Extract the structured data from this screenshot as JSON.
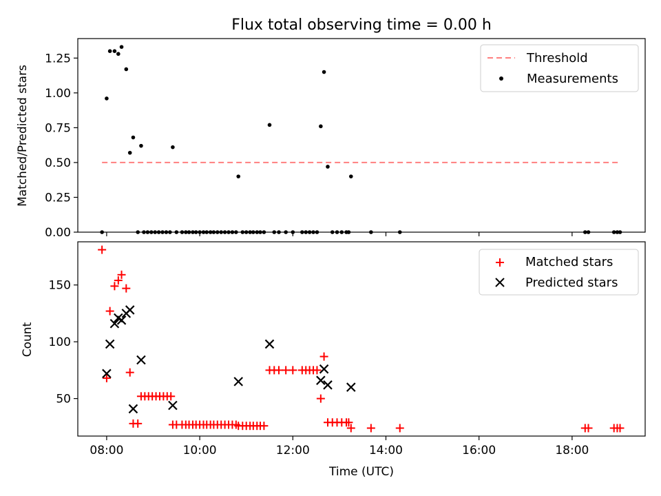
{
  "chart_data": [
    {
      "type": "scatter",
      "title": "Flux total observing time = 0.00 h",
      "xlabel": "",
      "ylabel": "Matched/Predicted stars",
      "xlim": [
        7.38,
        19.57
      ],
      "ylim": [
        0,
        1.39
      ],
      "yticks": [
        0.0,
        0.25,
        0.5,
        0.75,
        1.0,
        1.25
      ],
      "ytick_labels": [
        "0.00",
        "0.25",
        "0.50",
        "0.75",
        "1.00",
        "1.25"
      ],
      "legend_position": "upper right",
      "threshold": {
        "name": "Threshold",
        "y": 0.5,
        "x_range": [
          7.9,
          19.05
        ],
        "color": "#ff7f7f"
      },
      "series": [
        {
          "name": "Measurements",
          "color": "#000000",
          "points": [
            [
              7.9,
              0.0
            ],
            [
              8.0,
              0.96
            ],
            [
              8.07,
              1.3
            ],
            [
              8.17,
              1.3
            ],
            [
              8.25,
              1.28
            ],
            [
              8.32,
              1.33
            ],
            [
              8.42,
              1.17
            ],
            [
              8.5,
              0.57
            ],
            [
              8.57,
              0.68
            ],
            [
              8.74,
              0.62
            ],
            [
              9.42,
              0.61
            ],
            [
              8.67,
              0.0
            ],
            [
              8.8,
              0.0
            ],
            [
              8.88,
              0.0
            ],
            [
              8.96,
              0.0
            ],
            [
              9.04,
              0.0
            ],
            [
              9.12,
              0.0
            ],
            [
              9.2,
              0.0
            ],
            [
              9.28,
              0.0
            ],
            [
              9.36,
              0.0
            ],
            [
              9.5,
              0.0
            ],
            [
              9.62,
              0.0
            ],
            [
              9.7,
              0.0
            ],
            [
              9.77,
              0.0
            ],
            [
              9.85,
              0.0
            ],
            [
              9.92,
              0.0
            ],
            [
              10.0,
              0.0
            ],
            [
              10.08,
              0.0
            ],
            [
              10.15,
              0.0
            ],
            [
              10.23,
              0.0
            ],
            [
              10.3,
              0.0
            ],
            [
              10.38,
              0.0
            ],
            [
              10.46,
              0.0
            ],
            [
              10.54,
              0.0
            ],
            [
              10.62,
              0.0
            ],
            [
              10.7,
              0.0
            ],
            [
              10.78,
              0.0
            ],
            [
              10.83,
              0.4
            ],
            [
              10.92,
              0.0
            ],
            [
              11.0,
              0.0
            ],
            [
              11.08,
              0.0
            ],
            [
              11.15,
              0.0
            ],
            [
              11.23,
              0.0
            ],
            [
              11.3,
              0.0
            ],
            [
              11.38,
              0.0
            ],
            [
              11.5,
              0.77
            ],
            [
              11.6,
              0.0
            ],
            [
              11.7,
              0.0
            ],
            [
              11.85,
              0.0
            ],
            [
              12.0,
              0.0
            ],
            [
              12.2,
              0.0
            ],
            [
              12.28,
              0.0
            ],
            [
              12.36,
              0.0
            ],
            [
              12.44,
              0.0
            ],
            [
              12.52,
              0.0
            ],
            [
              12.6,
              0.76
            ],
            [
              12.67,
              1.15
            ],
            [
              12.75,
              0.47
            ],
            [
              12.85,
              0.0
            ],
            [
              12.95,
              0.0
            ],
            [
              13.05,
              0.0
            ],
            [
              13.15,
              0.0
            ],
            [
              13.2,
              0.0
            ],
            [
              13.25,
              0.4
            ],
            [
              13.68,
              0.0
            ],
            [
              14.3,
              0.0
            ],
            [
              18.28,
              0.0
            ],
            [
              18.35,
              0.0
            ],
            [
              18.9,
              0.0
            ],
            [
              18.97,
              0.0
            ],
            [
              19.03,
              0.0
            ]
          ]
        }
      ]
    },
    {
      "type": "scatter",
      "title": "",
      "xlabel": "Time (UTC)",
      "ylabel": "Count",
      "xlim": [
        7.38,
        19.57
      ],
      "ylim": [
        17,
        188
      ],
      "yticks": [
        50,
        100,
        150
      ],
      "ytick_labels": [
        "50",
        "100",
        "150"
      ],
      "xticks": [
        8,
        10,
        12,
        14,
        16,
        18
      ],
      "xtick_labels": [
        "08:00",
        "10:00",
        "12:00",
        "14:00",
        "16:00",
        "18:00"
      ],
      "legend_position": "upper right",
      "series": [
        {
          "name": "Matched stars",
          "marker": "+",
          "color": "#ff0000",
          "points": [
            [
              7.9,
              181
            ],
            [
              8.0,
              68
            ],
            [
              8.07,
              127
            ],
            [
              8.17,
              149
            ],
            [
              8.25,
              154
            ],
            [
              8.32,
              159
            ],
            [
              8.42,
              147
            ],
            [
              8.5,
              73
            ],
            [
              8.57,
              28
            ],
            [
              8.67,
              28
            ],
            [
              8.74,
              52
            ],
            [
              8.82,
              52
            ],
            [
              8.9,
              52
            ],
            [
              8.98,
              52
            ],
            [
              9.06,
              52
            ],
            [
              9.14,
              52
            ],
            [
              9.22,
              52
            ],
            [
              9.3,
              52
            ],
            [
              9.38,
              52
            ],
            [
              9.42,
              27
            ],
            [
              9.5,
              27
            ],
            [
              9.62,
              27
            ],
            [
              9.7,
              27
            ],
            [
              9.77,
              27
            ],
            [
              9.85,
              27
            ],
            [
              9.92,
              27
            ],
            [
              10.0,
              27
            ],
            [
              10.08,
              27
            ],
            [
              10.15,
              27
            ],
            [
              10.23,
              27
            ],
            [
              10.3,
              27
            ],
            [
              10.38,
              27
            ],
            [
              10.46,
              27
            ],
            [
              10.54,
              27
            ],
            [
              10.62,
              27
            ],
            [
              10.7,
              27
            ],
            [
              10.78,
              27
            ],
            [
              10.83,
              26
            ],
            [
              10.92,
              26
            ],
            [
              11.0,
              26
            ],
            [
              11.08,
              26
            ],
            [
              11.15,
              26
            ],
            [
              11.23,
              26
            ],
            [
              11.3,
              26
            ],
            [
              11.38,
              26
            ],
            [
              11.5,
              75
            ],
            [
              11.6,
              75
            ],
            [
              11.7,
              75
            ],
            [
              11.85,
              75
            ],
            [
              12.0,
              75
            ],
            [
              12.2,
              75
            ],
            [
              12.28,
              75
            ],
            [
              12.36,
              75
            ],
            [
              12.44,
              75
            ],
            [
              12.52,
              75
            ],
            [
              12.6,
              50
            ],
            [
              12.67,
              87
            ],
            [
              12.75,
              29
            ],
            [
              12.85,
              29
            ],
            [
              12.95,
              29
            ],
            [
              13.05,
              29
            ],
            [
              13.15,
              29
            ],
            [
              13.2,
              29
            ],
            [
              13.25,
              24
            ],
            [
              13.68,
              24
            ],
            [
              14.3,
              24
            ],
            [
              18.28,
              24
            ],
            [
              18.35,
              24
            ],
            [
              18.9,
              24
            ],
            [
              18.97,
              24
            ],
            [
              19.03,
              24
            ]
          ]
        },
        {
          "name": "Predicted stars",
          "marker": "x",
          "color": "#000000",
          "points": [
            [
              8.0,
              72
            ],
            [
              8.07,
              98
            ],
            [
              8.17,
              116
            ],
            [
              8.25,
              121
            ],
            [
              8.32,
              119
            ],
            [
              8.42,
              125
            ],
            [
              8.5,
              128
            ],
            [
              8.57,
              41
            ],
            [
              8.74,
              84
            ],
            [
              9.42,
              44
            ],
            [
              10.83,
              65
            ],
            [
              11.5,
              98
            ],
            [
              12.6,
              66
            ],
            [
              12.67,
              76
            ],
            [
              12.75,
              62
            ],
            [
              13.25,
              60
            ]
          ]
        }
      ]
    }
  ]
}
